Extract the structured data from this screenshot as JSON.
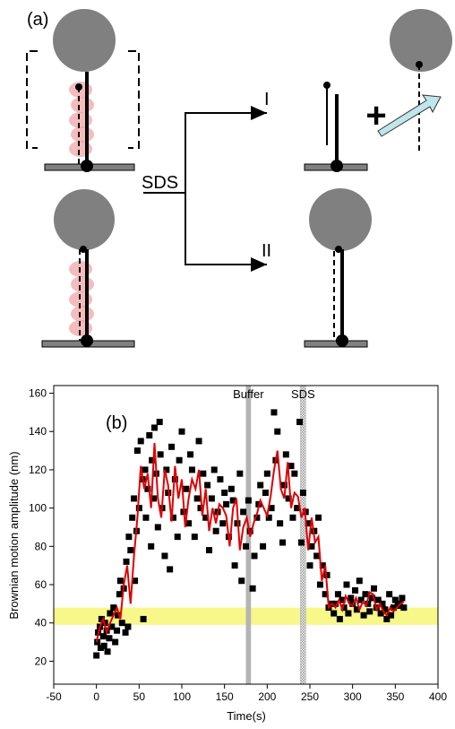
{
  "diagram": {
    "panel": "(a)",
    "branch_1": "I",
    "branch_2": "II",
    "reagent": "SDS",
    "plus": "+"
  },
  "chart_data": {
    "type": "scatter",
    "panel_label": "(b)",
    "x_label": "Time(s)",
    "y_label": "Brownian motion amplitude (nm)",
    "xlim": [
      -50,
      400
    ],
    "xticks": [
      -50,
      0,
      50,
      100,
      150,
      200,
      250,
      300,
      350,
      400
    ],
    "ylim": [
      8,
      164
    ],
    "yticks": [
      20,
      40,
      60,
      80,
      100,
      120,
      140,
      160
    ],
    "band": {
      "y": [
        39,
        48
      ],
      "color": "#f7f78a"
    },
    "markers": [
      {
        "label": "Buffer",
        "x": [
          175,
          181
        ],
        "color": "#b4b4b4"
      },
      {
        "label": "SDS",
        "x": [
          239,
          245
        ],
        "color": "hatched"
      }
    ],
    "scatter": {
      "color": "#000000",
      "x": [
        0,
        1,
        2,
        4,
        5,
        6,
        8,
        9,
        10,
        12,
        13,
        15,
        16,
        18,
        20,
        22,
        24,
        25,
        27,
        28,
        30,
        32,
        34,
        35,
        37,
        38,
        40,
        42,
        44,
        45,
        47,
        48,
        50,
        52,
        54,
        55,
        57,
        58,
        60,
        62,
        64,
        65,
        67,
        68,
        70,
        72,
        74,
        75,
        77,
        80,
        82,
        84,
        86,
        88,
        90,
        92,
        95,
        97,
        100,
        102,
        105,
        108,
        110,
        112,
        115,
        118,
        120,
        122,
        125,
        128,
        130,
        132,
        135,
        138,
        140,
        142,
        145,
        148,
        150,
        152,
        155,
        158,
        160,
        162,
        165,
        168,
        170,
        172,
        175,
        178,
        180,
        183,
        185,
        188,
        190,
        192,
        195,
        198,
        200,
        202,
        205,
        208,
        210,
        212,
        215,
        218,
        220,
        222,
        225,
        228,
        230,
        232,
        235,
        238,
        240,
        242,
        245,
        248,
        250,
        252,
        255,
        258,
        260,
        262,
        265,
        268,
        270,
        272,
        275,
        278,
        280,
        283,
        285,
        288,
        290,
        293,
        295,
        298,
        300,
        303,
        305,
        308,
        310,
        313,
        315,
        318,
        320,
        323,
        325,
        328,
        330,
        333,
        335,
        338,
        340,
        343,
        345,
        348,
        350,
        353,
        355,
        358,
        360
      ],
      "y": [
        23,
        30,
        35,
        38,
        27,
        42,
        33,
        28,
        40,
        36,
        25,
        32,
        45,
        38,
        48,
        30,
        36,
        44,
        55,
        62,
        40,
        58,
        35,
        72,
        38,
        85,
        78,
        95,
        105,
        62,
        88,
        130,
        100,
        135,
        115,
        42,
        120,
        95,
        110,
        138,
        80,
        125,
        105,
        142,
        118,
        90,
        145,
        128,
        100,
        75,
        120,
        108,
        68,
        132,
        95,
        115,
        85,
        125,
        140,
        98,
        110,
        92,
        128,
        120,
        85,
        105,
        135,
        100,
        118,
        95,
        112,
        78,
        105,
        120,
        88,
        98,
        115,
        92,
        108,
        102,
        85,
        110,
        104,
        70,
        92,
        118,
        62,
        98,
        80,
        104,
        88,
        58,
        75,
        95,
        102,
        112,
        80,
        108,
        118,
        95,
        100,
        150,
        125,
        140,
        92,
        82,
        112,
        128,
        105,
        122,
        95,
        118,
        100,
        145,
        82,
        108,
        98,
        92,
        70,
        80,
        88,
        75,
        95,
        60,
        70,
        55,
        65,
        48,
        50,
        45,
        50,
        55,
        42,
        52,
        48,
        60,
        45,
        53,
        50,
        57,
        47,
        62,
        52,
        44,
        55,
        50,
        46,
        53,
        58,
        48,
        52,
        45,
        50,
        47,
        42,
        55,
        44,
        48,
        52,
        49,
        50,
        53,
        48
      ]
    },
    "line": {
      "color": "#e00000",
      "x": [
        0,
        4,
        8,
        12,
        16,
        20,
        24,
        28,
        32,
        36,
        40,
        44,
        48,
        52,
        56,
        60,
        64,
        68,
        72,
        76,
        80,
        84,
        88,
        92,
        96,
        100,
        104,
        108,
        112,
        116,
        120,
        124,
        128,
        132,
        136,
        140,
        144,
        148,
        152,
        156,
        160,
        164,
        168,
        172,
        176,
        180,
        184,
        188,
        192,
        196,
        200,
        204,
        208,
        212,
        216,
        220,
        224,
        228,
        232,
        236,
        240,
        244,
        248,
        252,
        256,
        260,
        264,
        268,
        272,
        276,
        280,
        284,
        288,
        292,
        296,
        300,
        304,
        308,
        312,
        316,
        320,
        324,
        328,
        332,
        336,
        340,
        344,
        348,
        352,
        356,
        360
      ],
      "y": [
        30,
        38,
        42,
        35,
        40,
        44,
        48,
        42,
        60,
        70,
        50,
        75,
        95,
        122,
        110,
        118,
        100,
        134,
        105,
        95,
        120,
        112,
        93,
        122,
        105,
        115,
        90,
        105,
        115,
        110,
        120,
        96,
        110,
        88,
        100,
        92,
        102,
        100,
        96,
        80,
        100,
        105,
        78,
        90,
        95,
        85,
        92,
        97,
        104,
        100,
        96,
        106,
        120,
        130,
        110,
        105,
        124,
        100,
        108,
        106,
        95,
        100,
        78,
        95,
        82,
        85,
        62,
        70,
        48,
        50,
        48,
        52,
        47,
        54,
        50,
        49,
        53,
        47,
        51,
        49,
        56,
        55,
        47,
        50,
        46,
        44,
        48,
        46,
        48,
        50,
        51
      ]
    }
  }
}
